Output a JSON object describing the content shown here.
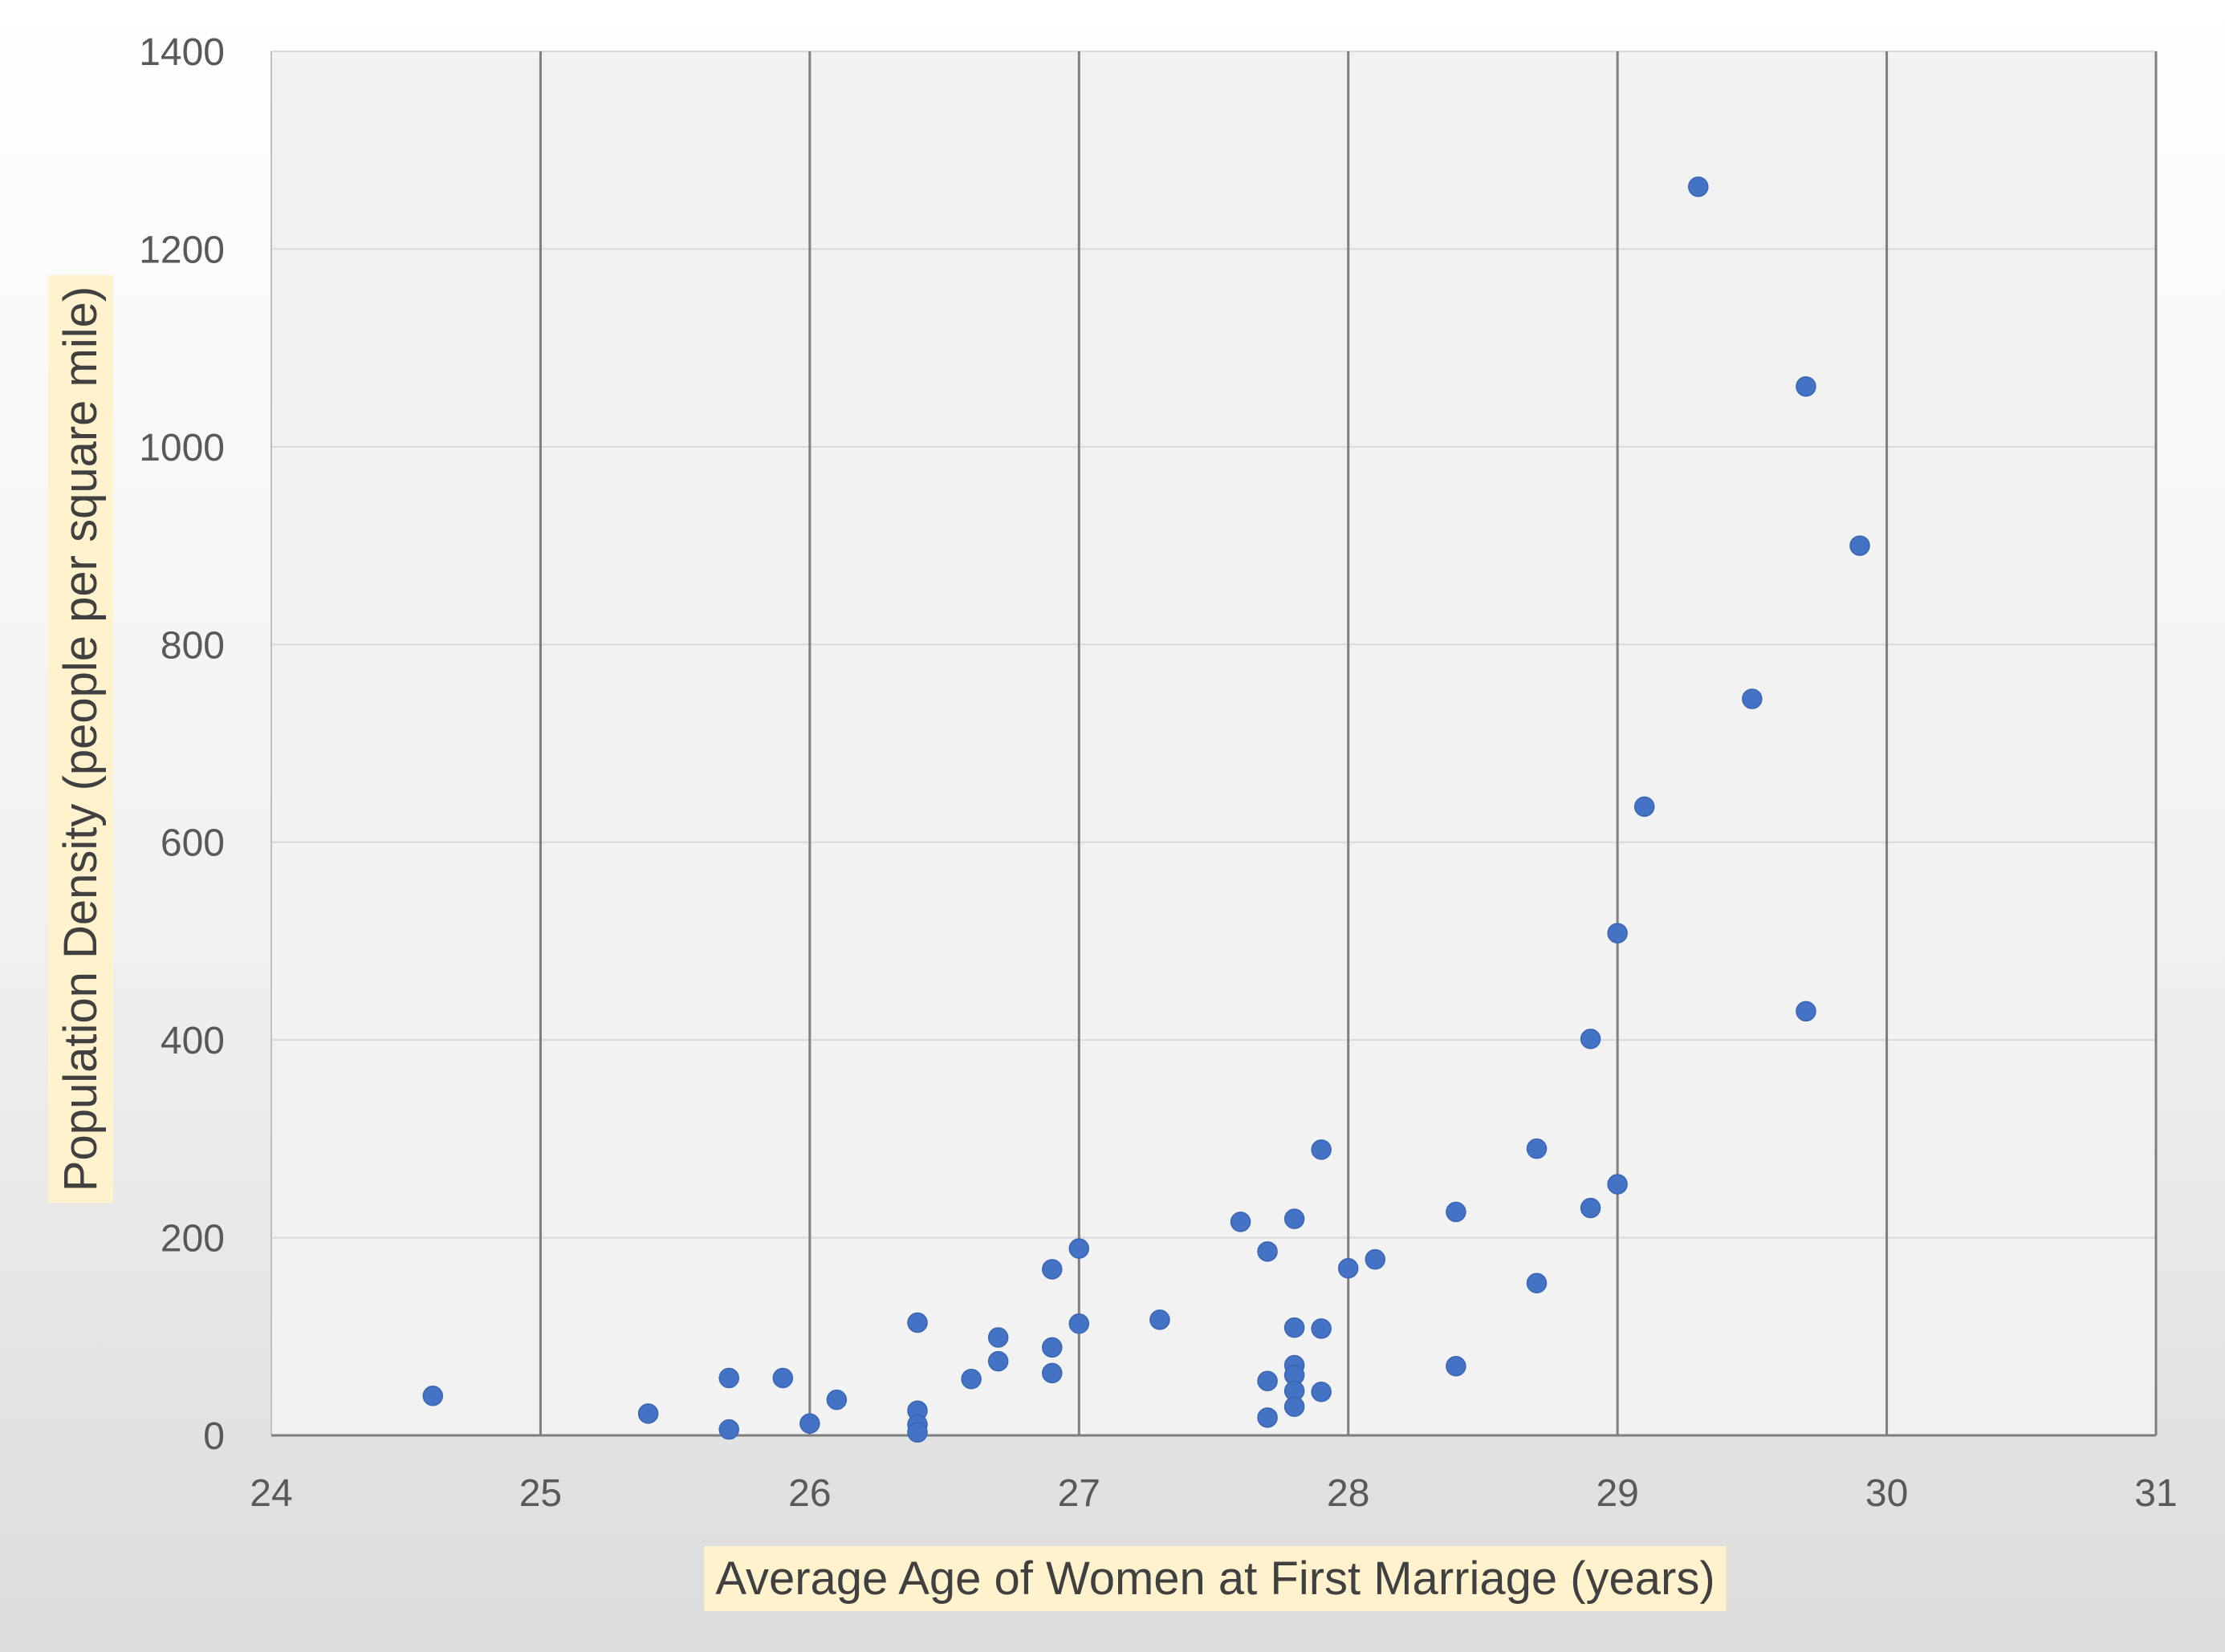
{
  "chart_data": {
    "type": "scatter",
    "title": "",
    "xlabel": "Average Age of Women at First Marriage (years)",
    "ylabel": "Population Density (people per square mile)",
    "xlim": [
      24,
      31
    ],
    "ylim": [
      0,
      1400
    ],
    "x_ticks": [
      "24",
      "25",
      "26",
      "27",
      "28",
      "29",
      "30",
      "31"
    ],
    "y_ticks": [
      "0",
      "200",
      "400",
      "600",
      "800",
      "1000",
      "1200",
      "1400"
    ],
    "major_vertical_grid": true,
    "major_horizontal_grid": true,
    "legend": "none",
    "marker_color": "#4472C4",
    "plot_background": "#F2F2F2",
    "label_highlight_color": "#FFF2CC",
    "series": [
      {
        "points": [
          [
            24.6,
            40
          ],
          [
            25.4,
            22
          ],
          [
            25.7,
            58
          ],
          [
            25.7,
            6
          ],
          [
            25.9,
            58
          ],
          [
            26.0,
            12
          ],
          [
            26.1,
            36
          ],
          [
            26.4,
            114
          ],
          [
            26.4,
            25
          ],
          [
            26.4,
            11
          ],
          [
            26.4,
            3
          ],
          [
            26.6,
            57
          ],
          [
            26.7,
            99
          ],
          [
            26.7,
            75
          ],
          [
            26.9,
            168
          ],
          [
            26.9,
            89
          ],
          [
            26.9,
            63
          ],
          [
            27.0,
            189
          ],
          [
            27.0,
            113
          ],
          [
            27.3,
            117
          ],
          [
            27.6,
            216
          ],
          [
            27.7,
            186
          ],
          [
            27.7,
            55
          ],
          [
            27.7,
            18
          ],
          [
            27.8,
            219
          ],
          [
            27.8,
            109
          ],
          [
            27.8,
            71
          ],
          [
            27.8,
            61
          ],
          [
            27.8,
            45
          ],
          [
            27.8,
            29
          ],
          [
            27.9,
            289
          ],
          [
            27.9,
            108
          ],
          [
            27.9,
            44
          ],
          [
            28.0,
            169
          ],
          [
            28.1,
            178
          ],
          [
            28.4,
            226
          ],
          [
            28.4,
            70
          ],
          [
            28.7,
            290
          ],
          [
            28.7,
            154
          ],
          [
            28.9,
            401
          ],
          [
            28.9,
            230
          ],
          [
            29.0,
            508
          ],
          [
            29.0,
            254
          ],
          [
            29.1,
            636
          ],
          [
            29.3,
            1263
          ],
          [
            29.5,
            745
          ],
          [
            29.7,
            1061
          ],
          [
            29.7,
            429
          ],
          [
            29.9,
            900
          ]
        ]
      }
    ]
  }
}
